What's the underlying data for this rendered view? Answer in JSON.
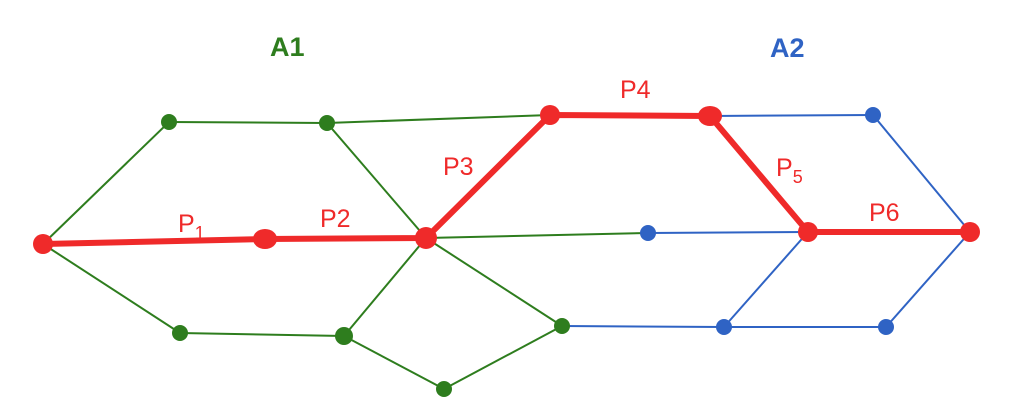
{
  "colors": {
    "a1": "#2e7d1e",
    "a2": "#2f63c4",
    "path": "#ef2a2a"
  },
  "regions": {
    "a1_label": "A1",
    "a2_label": "A2"
  },
  "path_labels": {
    "p1_main": "P",
    "p1_sub": "1",
    "p2": "P2",
    "p3": "P3",
    "p4": "P4",
    "p5_main": "P",
    "p5_sub": "5",
    "p6": "P6"
  }
}
